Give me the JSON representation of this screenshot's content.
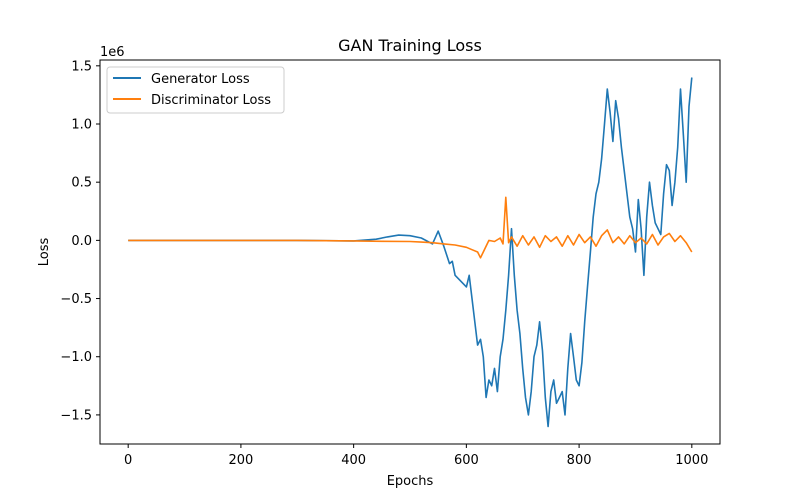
{
  "chart_data": {
    "type": "line",
    "title": "GAN Training Loss",
    "xlabel": "Epochs",
    "ylabel": "Loss",
    "y_offset_label": "1e6",
    "y_scale_factor": 1000000,
    "xlim": [
      -50,
      1050
    ],
    "ylim": [
      -1750000,
      1550000
    ],
    "x_ticks": [
      0,
      200,
      400,
      600,
      800,
      1000
    ],
    "y_ticks": [
      -1500000,
      -1000000,
      -500000,
      0,
      500000,
      1000000,
      1500000
    ],
    "y_tick_labels": [
      "−1.5",
      "−1.0",
      "−0.5",
      "0.0",
      "0.5",
      "1.0",
      "1.5"
    ],
    "legend_position": "upper-left",
    "grid": false,
    "series": [
      {
        "name": "Generator Loss",
        "color": "#1f77b4",
        "x": [
          0,
          100,
          200,
          300,
          400,
          440,
          460,
          480,
          500,
          520,
          540,
          550,
          560,
          570,
          575,
          580,
          590,
          600,
          605,
          610,
          615,
          620,
          625,
          630,
          635,
          640,
          645,
          650,
          655,
          660,
          665,
          670,
          675,
          680,
          685,
          690,
          695,
          700,
          705,
          710,
          715,
          720,
          725,
          730,
          735,
          740,
          745,
          750,
          755,
          760,
          765,
          770,
          775,
          780,
          785,
          790,
          795,
          800,
          805,
          810,
          815,
          820,
          825,
          830,
          835,
          840,
          845,
          850,
          855,
          860,
          865,
          870,
          875,
          880,
          885,
          890,
          895,
          900,
          905,
          910,
          915,
          920,
          925,
          930,
          935,
          940,
          945,
          950,
          955,
          960,
          965,
          970,
          975,
          980,
          985,
          990,
          995,
          1000
        ],
        "y": [
          0,
          0,
          0,
          0,
          -5000,
          10000,
          30000,
          45000,
          40000,
          20000,
          -30000,
          80000,
          -50000,
          -200000,
          -180000,
          -300000,
          -350000,
          -400000,
          -300000,
          -500000,
          -700000,
          -900000,
          -850000,
          -1000000,
          -1350000,
          -1200000,
          -1250000,
          -1100000,
          -1300000,
          -1000000,
          -850000,
          -600000,
          -300000,
          100000,
          -300000,
          -600000,
          -800000,
          -1100000,
          -1350000,
          -1500000,
          -1300000,
          -1000000,
          -900000,
          -700000,
          -950000,
          -1350000,
          -1600000,
          -1300000,
          -1200000,
          -1400000,
          -1350000,
          -1300000,
          -1500000,
          -1100000,
          -800000,
          -1000000,
          -1200000,
          -1250000,
          -1050000,
          -700000,
          -400000,
          -100000,
          200000,
          400000,
          500000,
          700000,
          1000000,
          1300000,
          1100000,
          850000,
          1200000,
          1050000,
          800000,
          600000,
          400000,
          200000,
          100000,
          -100000,
          350000,
          100000,
          -300000,
          200000,
          500000,
          300000,
          150000,
          100000,
          50000,
          400000,
          650000,
          600000,
          300000,
          500000,
          800000,
          1300000,
          900000,
          500000,
          1150000,
          1400000
        ]
      },
      {
        "name": "Discriminator Loss",
        "color": "#ff7f0e",
        "x": [
          0,
          100,
          200,
          300,
          400,
          450,
          500,
          520,
          540,
          560,
          580,
          600,
          610,
          620,
          625,
          630,
          640,
          650,
          660,
          665,
          670,
          675,
          680,
          690,
          700,
          710,
          720,
          730,
          740,
          750,
          760,
          770,
          780,
          790,
          800,
          810,
          820,
          830,
          840,
          850,
          860,
          870,
          880,
          890,
          900,
          910,
          920,
          930,
          940,
          950,
          960,
          970,
          980,
          990,
          1000
        ],
        "y": [
          0,
          0,
          0,
          0,
          -5000,
          -8000,
          -10000,
          -15000,
          -20000,
          -30000,
          -40000,
          -60000,
          -80000,
          -100000,
          -150000,
          -100000,
          0,
          -10000,
          20000,
          -30000,
          370000,
          -20000,
          30000,
          -50000,
          40000,
          -40000,
          30000,
          -60000,
          40000,
          -10000,
          30000,
          -50000,
          40000,
          -40000,
          50000,
          -20000,
          30000,
          -50000,
          40000,
          90000,
          -20000,
          30000,
          -30000,
          40000,
          -20000,
          20000,
          -30000,
          50000,
          -40000,
          30000,
          60000,
          -10000,
          40000,
          -20000,
          -100000
        ]
      }
    ]
  }
}
